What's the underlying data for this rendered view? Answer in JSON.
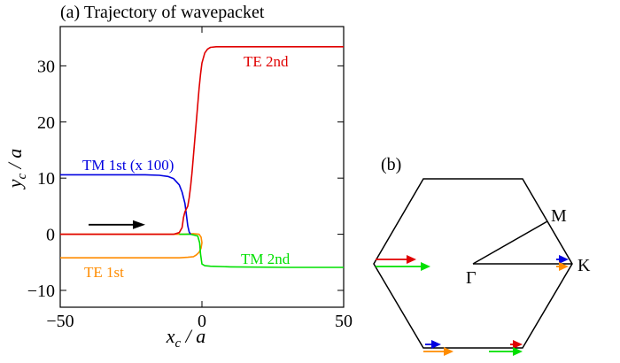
{
  "chart_data": [
    {
      "type": "line",
      "title": "(a) Trajectory of wavepacket",
      "xlabel_main": "x",
      "xlabel_sub": "c",
      "xlabel_tail": " / a",
      "ylabel_main": "y",
      "ylabel_sub": "c",
      "ylabel_tail": " / a",
      "xlim": [
        -50,
        50
      ],
      "ylim": [
        -13,
        37
      ],
      "xticks": [
        -50,
        0,
        50
      ],
      "xtick_labels": [
        "−50",
        "0",
        "50"
      ],
      "yticks": [
        -10,
        0,
        10,
        20,
        30
      ],
      "ytick_labels": [
        "−10",
        "0",
        "10",
        "20",
        "30"
      ],
      "arrow": {
        "x": [
          -40,
          -20
        ],
        "y": [
          1.7,
          1.7
        ],
        "color": "#000000"
      },
      "series": [
        {
          "name": "TE 2nd",
          "color": "#e00000",
          "x": [
            -50,
            -10,
            -8,
            -7,
            -6.5,
            -6,
            -5,
            -4.5,
            -4,
            -3.5,
            -3,
            -2.5,
            -2,
            -1.5,
            -1,
            -0.5,
            0,
            1,
            2,
            3,
            5,
            10,
            30,
            50
          ],
          "y": [
            0,
            0,
            0.3,
            1.2,
            3,
            4,
            5,
            6.5,
            8.5,
            11,
            14,
            17,
            20,
            23,
            26,
            28.5,
            30.5,
            32.3,
            33,
            33.3,
            33.4,
            33.4,
            33.4,
            33.4
          ]
        },
        {
          "name": "TM 1st (x 100)",
          "color": "#0000e0",
          "x": [
            -50,
            -20,
            -15,
            -12,
            -10,
            -8,
            -7,
            -6,
            -5.5,
            -5,
            -4.5,
            -4
          ],
          "y": [
            10.6,
            10.6,
            10.5,
            10.3,
            9.9,
            8.8,
            7.5,
            5.5,
            3.5,
            1.5,
            0.4,
            0
          ]
        },
        {
          "name": "TE 1st",
          "color": "#ff8c00",
          "x": [
            -50,
            -10,
            -6,
            -3,
            -1,
            -0.3,
            0,
            -0.3,
            -1,
            -2,
            -3,
            -5,
            -8,
            -15,
            -50
          ],
          "y": [
            0,
            0,
            0,
            0.1,
            0,
            -0.5,
            -1.5,
            -2.5,
            -3.2,
            -3.7,
            -4,
            -4.1,
            -4.2,
            -4.2,
            -4.2
          ]
        },
        {
          "name": "TM 2nd",
          "color": "#00e000",
          "x": [
            -8,
            -4,
            -1.5,
            -0.8,
            -0.5,
            0,
            1,
            3,
            10,
            30,
            50
          ],
          "y": [
            0,
            0,
            -0.3,
            -1.5,
            -3.5,
            -5.3,
            -5.6,
            -5.7,
            -5.8,
            -5.9,
            -5.9
          ]
        }
      ]
    },
    {
      "type": "diagram",
      "title": "(b)",
      "labels": {
        "gamma": "Γ",
        "m": "M",
        "k": "K"
      },
      "arrows": [
        {
          "name": "red-left",
          "color": "#e00000"
        },
        {
          "name": "green-left",
          "color": "#00e000"
        },
        {
          "name": "blue-k",
          "color": "#0000e0"
        },
        {
          "name": "orange-k",
          "color": "#ff8c00"
        },
        {
          "name": "blue-bottom",
          "color": "#0000e0"
        },
        {
          "name": "orange-bottom",
          "color": "#ff8c00"
        },
        {
          "name": "red-bottom",
          "color": "#e00000"
        },
        {
          "name": "green-bottom",
          "color": "#00e000"
        }
      ]
    }
  ]
}
